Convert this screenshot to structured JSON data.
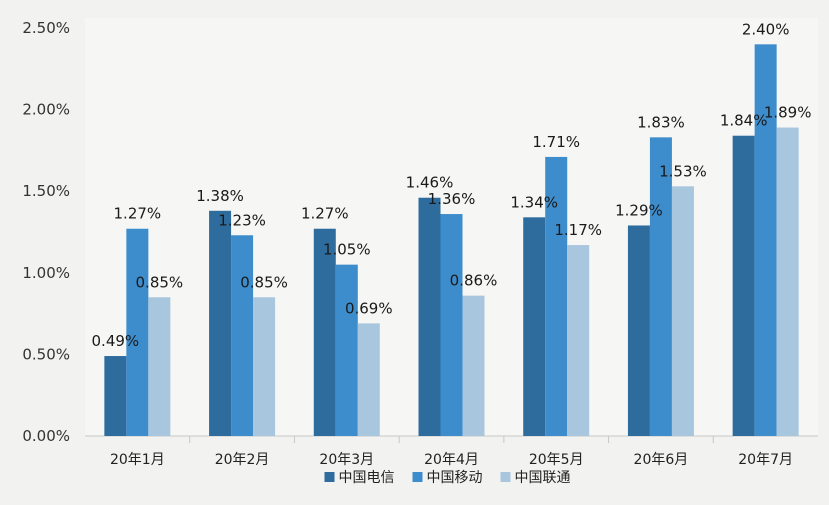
{
  "chart_data": {
    "type": "bar",
    "title": "",
    "xlabel": "",
    "ylabel": "",
    "ylim": [
      0,
      2.5
    ],
    "yticks": [
      "0.00%",
      "0.50%",
      "1.00%",
      "1.50%",
      "2.00%",
      "2.50%"
    ],
    "categories": [
      "20年1月",
      "20年2月",
      "20年3月",
      "20年4月",
      "20年5月",
      "20年6月",
      "20年7月"
    ],
    "series": [
      {
        "name": "中国电信",
        "color": "#2e6c9e",
        "values": [
          0.49,
          1.38,
          1.27,
          1.46,
          1.34,
          1.29,
          1.84
        ],
        "labels": [
          "0.49%",
          "1.38%",
          "1.27%",
          "1.46%",
          "1.34%",
          "1.29%",
          "1.84%"
        ]
      },
      {
        "name": "中国移动",
        "color": "#3d8ccc",
        "values": [
          1.27,
          1.23,
          1.05,
          1.36,
          1.71,
          1.83,
          2.4
        ],
        "labels": [
          "1.27%",
          "1.23%",
          "1.05%",
          "1.36%",
          "1.71%",
          "1.83%",
          "2.40%"
        ]
      },
      {
        "name": "中国联通",
        "color": "#a9c6df",
        "values": [
          0.85,
          0.85,
          0.69,
          0.86,
          1.17,
          1.53,
          1.89
        ],
        "labels": [
          "0.85%",
          "0.85%",
          "0.69%",
          "0.86%",
          "1.17%",
          "1.53%",
          "1.89%"
        ]
      }
    ],
    "grid": false,
    "legend": "bottom"
  }
}
